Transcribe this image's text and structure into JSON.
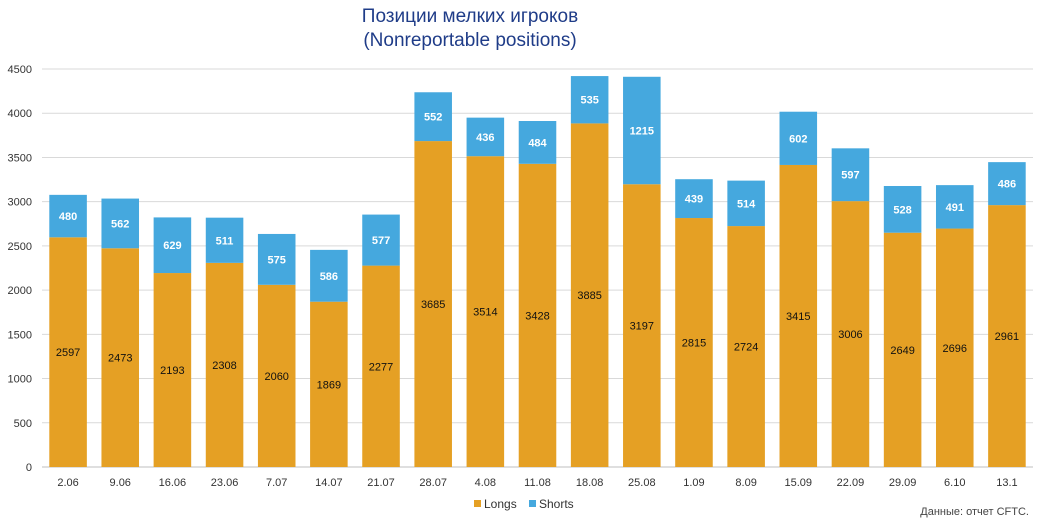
{
  "chart_data": {
    "type": "bar",
    "stacked": true,
    "title": "Позиции мелких игроков",
    "subtitle": "(Nonreportable positions)",
    "categories": [
      "2.06",
      "9.06",
      "16.06",
      "23.06",
      "7.07",
      "14.07",
      "21.07",
      "28.07",
      "4.08",
      "11.08",
      "18.08",
      "25.08",
      "1.09",
      "8.09",
      "15.09",
      "22.09",
      "29.09",
      "6.10",
      "13.1"
    ],
    "series": [
      {
        "name": "Longs",
        "color": "#e5a024",
        "values": [
          2597,
          2473,
          2193,
          2308,
          2060,
          1869,
          2277,
          3685,
          3514,
          3428,
          3885,
          3197,
          2815,
          2724,
          3415,
          3006,
          2649,
          2696,
          2961
        ]
      },
      {
        "name": "Shorts",
        "color": "#45a8de",
        "values": [
          480,
          562,
          629,
          511,
          575,
          586,
          577,
          552,
          436,
          484,
          535,
          1215,
          439,
          514,
          602,
          597,
          528,
          491,
          486
        ]
      }
    ],
    "ylim": [
      0,
      4500
    ],
    "yticks": [
      "0",
      "500",
      "1000",
      "1500",
      "2000",
      "2500",
      "3000",
      "3500",
      "4000",
      "4500"
    ],
    "grid": true,
    "legend_position": "bottom"
  },
  "source_note": "Данные: отчет CFTC."
}
